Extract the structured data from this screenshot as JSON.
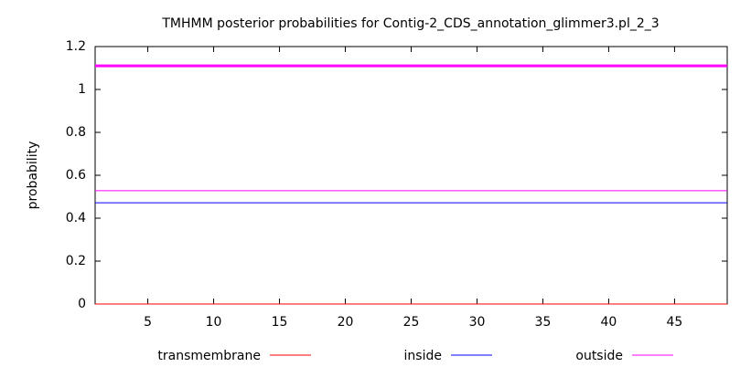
{
  "chart_data": {
    "type": "line",
    "title": "TMHMM posterior probabilities for Contig-2_CDS_annotation_glimmer3.pl_2_3",
    "y_label": "probability",
    "x": [
      1,
      49
    ],
    "series": [
      {
        "name": "transmembrane",
        "color": "#ff0000",
        "values": [
          0,
          0
        ]
      },
      {
        "name": "inside",
        "color": "#0000ff",
        "values": [
          0.472,
          0.472
        ]
      },
      {
        "name": "outside",
        "color": "#ff00ff",
        "values": [
          0.528,
          0.528
        ]
      },
      {
        "color": "#ff00ff",
        "values": [
          1.11,
          1.11
        ]
      }
    ],
    "xlim": [
      1,
      49
    ],
    "xticks": [
      5,
      10,
      15,
      20,
      25,
      30,
      35,
      40,
      45
    ],
    "ylim": [
      0,
      1.2
    ],
    "yticks": [
      0,
      0.2,
      0.4,
      0.6,
      0.8,
      1,
      1.2
    ],
    "legend": "bottom"
  }
}
